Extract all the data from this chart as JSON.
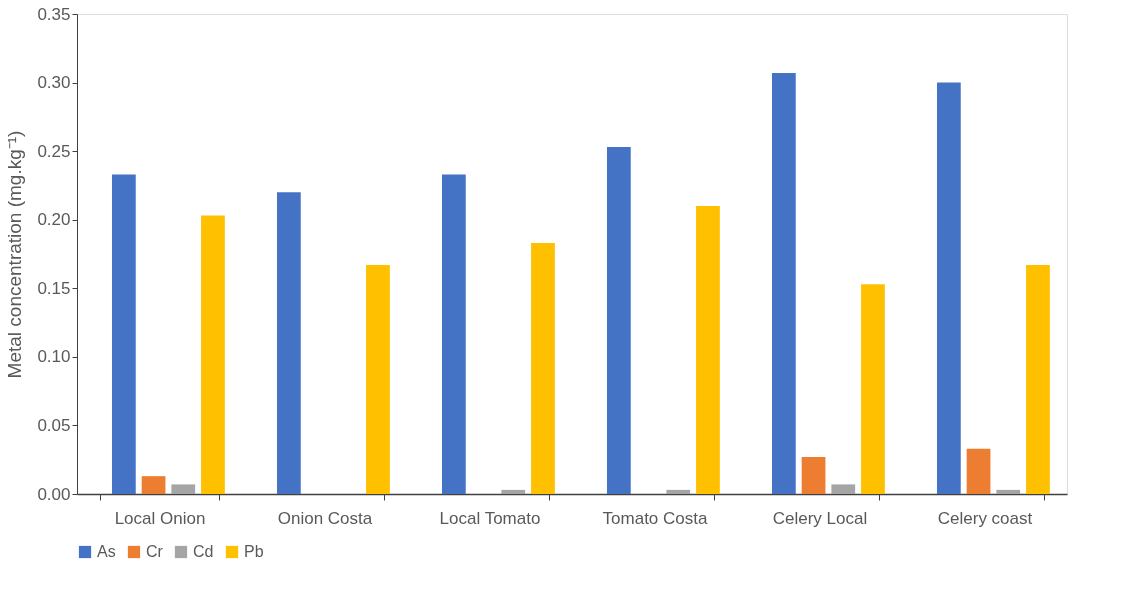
{
  "chart_data": {
    "type": "bar",
    "ylabel": "Metal concentration (mg.kg⁻¹)",
    "categories": [
      "Local Onion",
      "Onion Costa",
      "Local Tomato",
      "Tomato Costa",
      "Celery Local",
      "Celery coast"
    ],
    "series": [
      {
        "name": "As",
        "color": "#4472c4",
        "values": [
          0.233,
          0.22,
          0.233,
          0.253,
          0.307,
          0.3
        ]
      },
      {
        "name": "Cr",
        "color": "#ed7d31",
        "values": [
          0.013,
          0,
          0,
          0,
          0.027,
          0.033
        ]
      },
      {
        "name": "Cd",
        "color": "#a5a5a5",
        "values": [
          0.007,
          0,
          0.003,
          0.003,
          0.007,
          0.003
        ]
      },
      {
        "name": "Pb",
        "color": "#ffc000",
        "values": [
          0.203,
          0.167,
          0.183,
          0.21,
          0.153,
          0.167
        ]
      }
    ],
    "ylim": [
      0,
      0.35
    ],
    "yticks": [
      {
        "value": 0,
        "label": "0.00"
      },
      {
        "value": 0.05,
        "label": "0.05"
      },
      {
        "value": 0.1,
        "label": "0.10"
      },
      {
        "value": 0.15,
        "label": "0.15"
      },
      {
        "value": 0.2,
        "label": "0.20"
      },
      {
        "value": 0.25,
        "label": "0.25"
      },
      {
        "value": 0.3,
        "label": "0.30"
      },
      {
        "value": 0.35,
        "label": "0.35"
      }
    ],
    "grid": false,
    "legend": "bottom"
  }
}
